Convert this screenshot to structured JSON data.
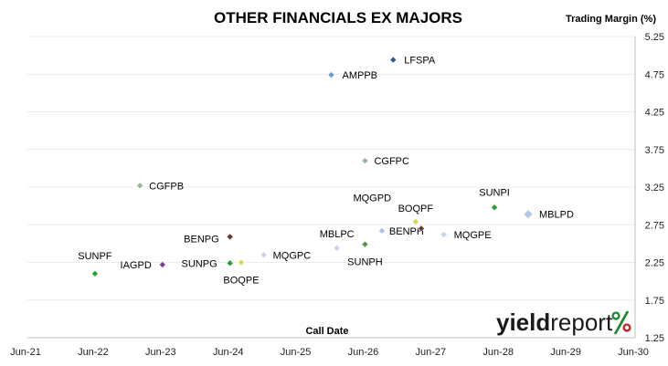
{
  "chart_data": {
    "type": "scatter",
    "title": "OTHER FINANCIALS EX MAJORS",
    "ylabel": "Trading Margin (%)",
    "xlabel": "Call Date",
    "x_ticks": [
      "Jun-21",
      "Jun-22",
      "Jun-23",
      "Jun-24",
      "Jun-25",
      "Jun-26",
      "Jun-27",
      "Jun-28",
      "Jun-29",
      "Jun-30"
    ],
    "y_ticks": [
      "1.25",
      "1.75",
      "2.25",
      "2.75",
      "3.25",
      "3.75",
      "4.25",
      "4.75",
      "5.25"
    ],
    "ylim": [
      1.25,
      5.25
    ],
    "xlim": [
      "2021-06",
      "2030-06"
    ],
    "y_axis_position": "right",
    "grid": "horizontal",
    "points": [
      {
        "label": "LFSPA",
        "x": "2026-11",
        "y": 4.94,
        "color": "#2e5a8c"
      },
      {
        "label": "AMPPB",
        "x": "2025-12",
        "y": 4.74,
        "color": "#6b9bd2"
      },
      {
        "label": "CGFPC",
        "x": "2026-06",
        "y": 3.6,
        "color": "#8fbc8f"
      },
      {
        "label": "CGFPB",
        "x": "2023-02",
        "y": 3.27,
        "color": "#8fbc8f"
      },
      {
        "label": "SUNPI",
        "x": "2028-05",
        "y": 2.98,
        "color": "#22a32a"
      },
      {
        "label": "MBLPD",
        "x": "2028-11",
        "y": 2.89,
        "color": "#b4c8e6"
      },
      {
        "label": "BOQPF",
        "x": "2027-03",
        "y": 2.79,
        "color": "#d7d75a"
      },
      {
        "label": "BENPH",
        "x": "2026-09",
        "y": 2.67,
        "color": "#a9c4e8"
      },
      {
        "label": "MQGPD",
        "x": "2027-04",
        "y": 2.7,
        "color": "#6b3a2a"
      },
      {
        "label": "MQGPE",
        "x": "2027-08",
        "y": 2.62,
        "color": "#c5d4ea"
      },
      {
        "label": "BENPG",
        "x": "2024-06",
        "y": 2.59,
        "color": "#6b3a2a"
      },
      {
        "label": "SUNPH",
        "x": "2026-06",
        "y": 2.49,
        "color": "#4f9a3a"
      },
      {
        "label": "MBLPC",
        "x": "2026-01",
        "y": 2.44,
        "color": "#c5d4ea"
      },
      {
        "label": "MQGPC",
        "x": "2024-12",
        "y": 2.35,
        "color": "#c5d4ea"
      },
      {
        "label": "SUNPG",
        "x": "2024-06",
        "y": 2.24,
        "color": "#22a32a"
      },
      {
        "label": "BOQPE",
        "x": "2024-08",
        "y": 2.25,
        "color": "#d7d75a"
      },
      {
        "label": "IAGPD",
        "x": "2023-06",
        "y": 2.22,
        "color": "#7a3c9a"
      },
      {
        "label": "SUNPF",
        "x": "2022-06",
        "y": 2.1,
        "color": "#22a32a"
      }
    ]
  },
  "logo": {
    "part1": "yield",
    "part2": "report",
    "symbol": "%"
  }
}
